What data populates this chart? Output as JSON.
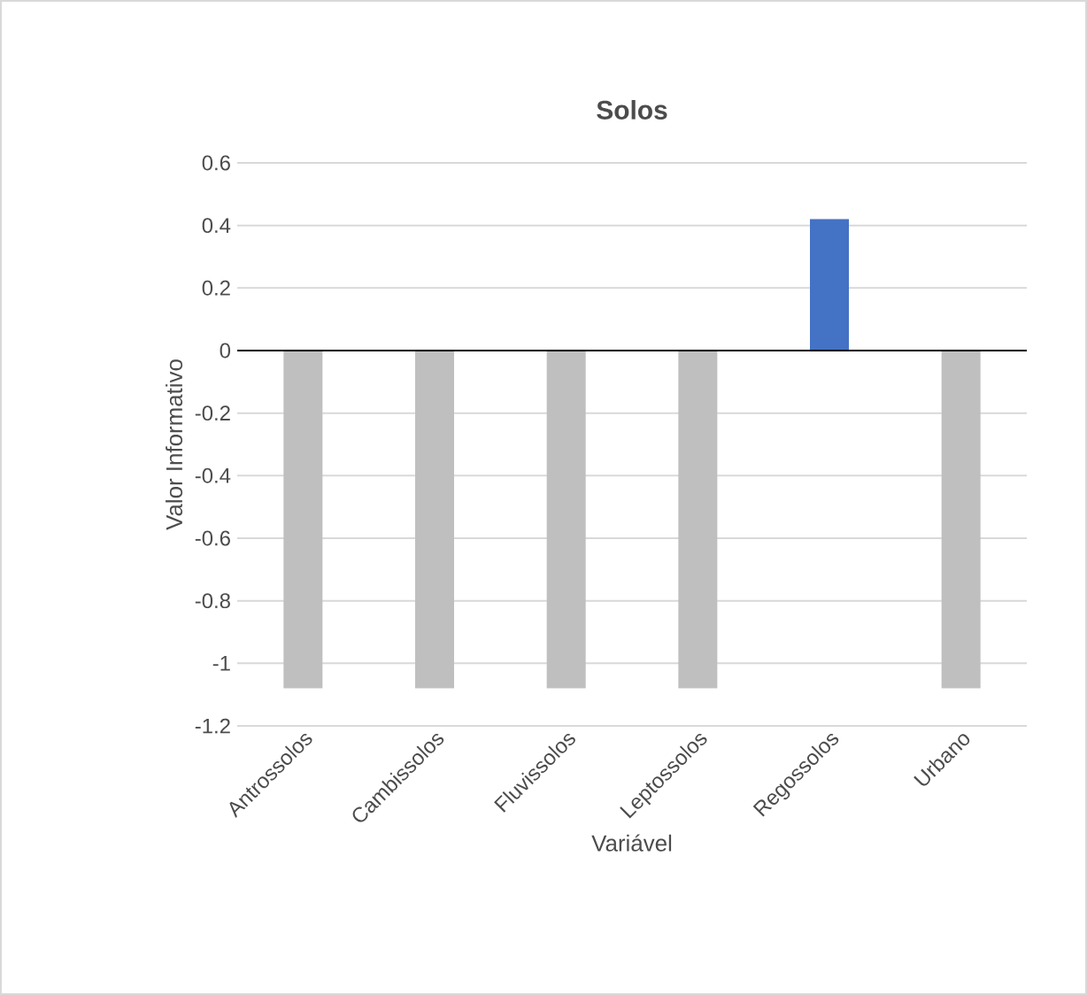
{
  "chart_data": {
    "type": "bar",
    "title": "Solos",
    "xlabel": "Variável",
    "ylabel": "Valor Informativo",
    "categories": [
      "Antrossolos",
      "Cambissolos",
      "Fluvissolos",
      "Leptossolos",
      "Regossolos",
      "Urbano"
    ],
    "values": [
      -1.08,
      -1.08,
      -1.08,
      -1.08,
      0.42,
      -1.08
    ],
    "colors": [
      "#bfbfbf",
      "#bfbfbf",
      "#bfbfbf",
      "#bfbfbf",
      "#4472c4",
      "#bfbfbf"
    ],
    "ylim": [
      -1.2,
      0.6
    ],
    "yticks": [
      0.6,
      0.4,
      0.2,
      0,
      -0.2,
      -0.4,
      -0.6,
      -0.8,
      -1,
      -1.2
    ],
    "grid": "y"
  }
}
